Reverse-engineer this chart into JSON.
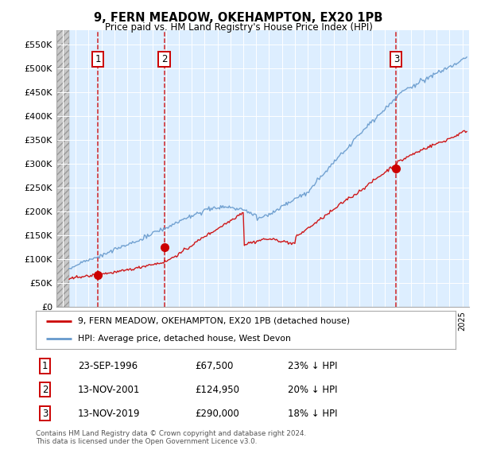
{
  "title1": "9, FERN MEADOW, OKEHAMPTON, EX20 1PB",
  "title2": "Price paid vs. HM Land Registry's House Price Index (HPI)",
  "legend1": "9, FERN MEADOW, OKEHAMPTON, EX20 1PB (detached house)",
  "legend2": "HPI: Average price, detached house, West Devon",
  "footnote": "Contains HM Land Registry data © Crown copyright and database right 2024.\nThis data is licensed under the Open Government Licence v3.0.",
  "sale_color": "#cc0000",
  "hpi_color": "#6699cc",
  "dashed_color": "#cc0000",
  "sales": [
    {
      "label": "1",
      "date_num": 1996.73,
      "price": 67500
    },
    {
      "label": "2",
      "date_num": 2001.87,
      "price": 124950
    },
    {
      "label": "3",
      "date_num": 2019.87,
      "price": 290000
    }
  ],
  "table_rows": [
    {
      "num": "1",
      "date": "23-SEP-1996",
      "price": "£67,500",
      "note": "23% ↓ HPI"
    },
    {
      "num": "2",
      "date": "13-NOV-2001",
      "price": "£124,950",
      "note": "20% ↓ HPI"
    },
    {
      "num": "3",
      "date": "13-NOV-2019",
      "price": "£290,000",
      "note": "18% ↓ HPI"
    }
  ],
  "xmin": 1993.5,
  "xmax": 2025.5,
  "ymin": 0,
  "ymax": 580000,
  "yticks": [
    0,
    50000,
    100000,
    150000,
    200000,
    250000,
    300000,
    350000,
    400000,
    450000,
    500000,
    550000
  ],
  "ytick_labels": [
    "£0",
    "£50K",
    "£100K",
    "£150K",
    "£200K",
    "£250K",
    "£300K",
    "£350K",
    "£400K",
    "£450K",
    "£500K",
    "£550K"
  ],
  "hatch_xmax": 1994.5,
  "background_color": "#ffffff",
  "plot_bg": "#ddeeff",
  "hpi_seed": 17,
  "prop_seed": 42
}
